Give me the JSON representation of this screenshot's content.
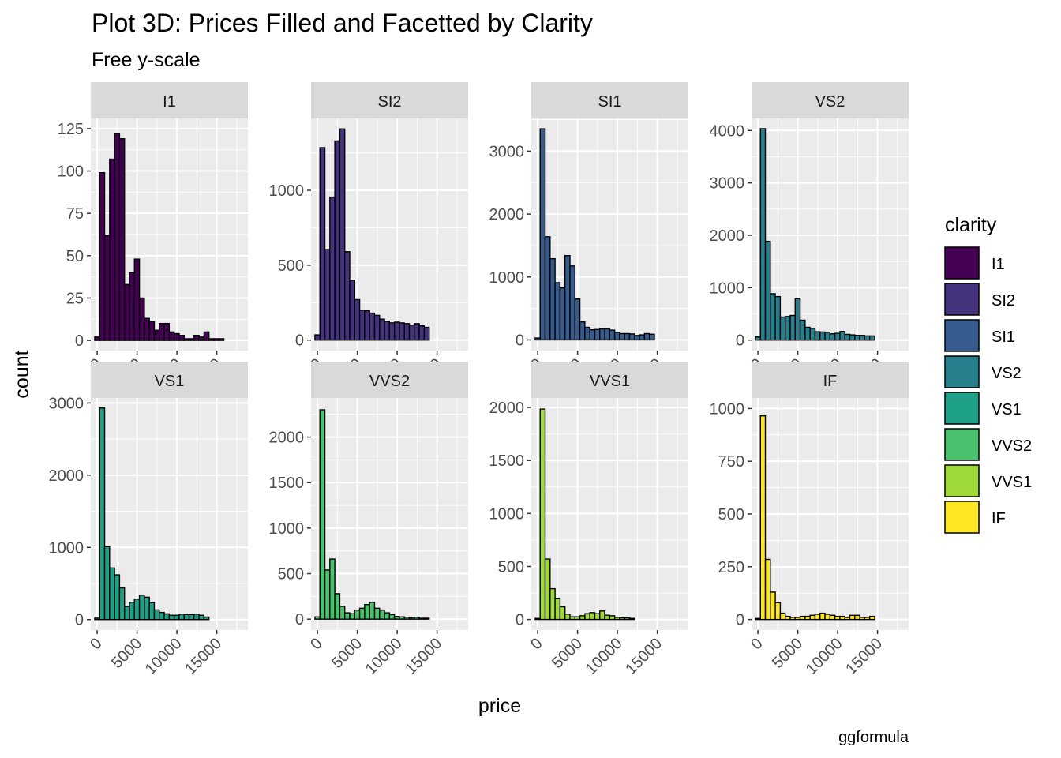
{
  "chart_data": {
    "type": "bar",
    "title": "Plot 3D: Prices Filled and Facetted by Clarity",
    "subtitle": "Free y-scale",
    "xlabel": "price",
    "ylabel": "count",
    "caption": "ggformula",
    "xlim": [
      -800,
      18900
    ],
    "x_ticks": [
      0,
      5000,
      10000,
      15000
    ],
    "bin_width": 623,
    "bin_centers": [
      0,
      623,
      1246,
      1869,
      2492,
      3115,
      3738,
      4361,
      4984,
      5607,
      6230,
      6853,
      7476,
      8099,
      8722,
      9345,
      9968,
      10591,
      11214,
      11837,
      12460,
      13083,
      13706,
      14329,
      14952,
      15575,
      16198,
      16821,
      17444,
      18067,
      18690
    ],
    "legend": {
      "title": "clarity",
      "position": "right",
      "items": [
        {
          "label": "I1",
          "color": "#440154"
        },
        {
          "label": "SI2",
          "color": "#46337E"
        },
        {
          "label": "SI1",
          "color": "#365C8D"
        },
        {
          "label": "VS2",
          "color": "#277F8E"
        },
        {
          "label": "VS1",
          "color": "#1FA187"
        },
        {
          "label": "VVS2",
          "color": "#4AC16D"
        },
        {
          "label": "VVS1",
          "color": "#A0DA39"
        },
        {
          "label": "IF",
          "color": "#FDE725"
        }
      ]
    },
    "panels": [
      {
        "label": "I1",
        "color": "#440154",
        "ylim": [
          -6,
          131
        ],
        "y_ticks": [
          0,
          25,
          50,
          75,
          100,
          125
        ],
        "values": [
          2,
          99,
          62,
          107,
          122,
          119,
          33,
          40,
          48,
          25,
          13,
          11,
          6,
          10,
          10,
          5,
          4,
          3,
          1,
          1,
          3,
          2,
          5,
          1,
          1,
          1,
          0,
          0,
          0,
          0,
          0
        ]
      },
      {
        "label": "SI2",
        "color": "#46337E",
        "ylim": [
          -70,
          1480
        ],
        "y_ticks": [
          0,
          500,
          1000
        ],
        "values": [
          35,
          1285,
          605,
          955,
          1330,
          1410,
          590,
          400,
          270,
          200,
          195,
          180,
          165,
          140,
          125,
          115,
          120,
          115,
          110,
          100,
          110,
          95,
          85,
          0,
          0,
          0,
          0,
          0,
          0,
          0,
          0
        ]
      },
      {
        "label": "SI1",
        "color": "#365C8D",
        "ylim": [
          -170,
          3520
        ],
        "y_ticks": [
          0,
          1000,
          2000,
          3000
        ],
        "values": [
          30,
          3355,
          1640,
          1290,
          910,
          825,
          1340,
          1175,
          650,
          285,
          200,
          160,
          165,
          175,
          175,
          155,
          120,
          100,
          100,
          95,
          70,
          80,
          100,
          90,
          0,
          0,
          0,
          0,
          0,
          0,
          0
        ]
      },
      {
        "label": "VS2",
        "color": "#277F8E",
        "ylim": [
          -200,
          4230
        ],
        "y_ticks": [
          0,
          1000,
          2000,
          3000,
          4000
        ],
        "values": [
          60,
          4035,
          1885,
          885,
          830,
          440,
          450,
          470,
          790,
          380,
          245,
          225,
          160,
          155,
          150,
          120,
          130,
          165,
          110,
          100,
          90,
          90,
          80,
          80,
          0,
          0,
          0,
          0,
          0,
          0,
          0
        ]
      },
      {
        "label": "VS1",
        "color": "#1FA187",
        "ylim": [
          -145,
          3070
        ],
        "y_ticks": [
          0,
          1000,
          2000,
          3000
        ],
        "values": [
          20,
          2930,
          1010,
          715,
          620,
          440,
          180,
          240,
          285,
          340,
          310,
          235,
          135,
          100,
          80,
          60,
          60,
          75,
          70,
          70,
          75,
          60,
          35,
          0,
          0,
          0,
          0,
          0,
          0,
          0,
          0
        ]
      },
      {
        "label": "VVS2",
        "color": "#4AC16D",
        "ylim": [
          -120,
          2430
        ],
        "y_ticks": [
          0,
          500,
          1000,
          1500,
          2000
        ],
        "values": [
          25,
          2300,
          540,
          660,
          280,
          140,
          70,
          60,
          100,
          120,
          160,
          185,
          120,
          100,
          70,
          50,
          30,
          25,
          20,
          15,
          20,
          10,
          10,
          0,
          0,
          0,
          0,
          0,
          0,
          0,
          0
        ]
      },
      {
        "label": "VVS1",
        "color": "#A0DA39",
        "ylim": [
          -100,
          2090
        ],
        "y_ticks": [
          0,
          500,
          1000,
          1500,
          2000
        ],
        "values": [
          10,
          1985,
          570,
          290,
          200,
          120,
          50,
          25,
          25,
          35,
          55,
          65,
          55,
          80,
          40,
          35,
          20,
          15,
          15,
          10,
          0,
          0,
          0,
          0,
          0,
          0,
          0,
          0,
          0,
          0,
          0
        ]
      },
      {
        "label": "IF",
        "color": "#FDE725",
        "ylim": [
          -50,
          1050
        ],
        "y_ticks": [
          0,
          250,
          500,
          750,
          1000
        ],
        "values": [
          5,
          965,
          285,
          130,
          80,
          30,
          15,
          10,
          10,
          15,
          15,
          20,
          25,
          30,
          25,
          20,
          15,
          15,
          10,
          20,
          20,
          10,
          10,
          15,
          0,
          0,
          0,
          0,
          0,
          0,
          0
        ]
      }
    ]
  }
}
